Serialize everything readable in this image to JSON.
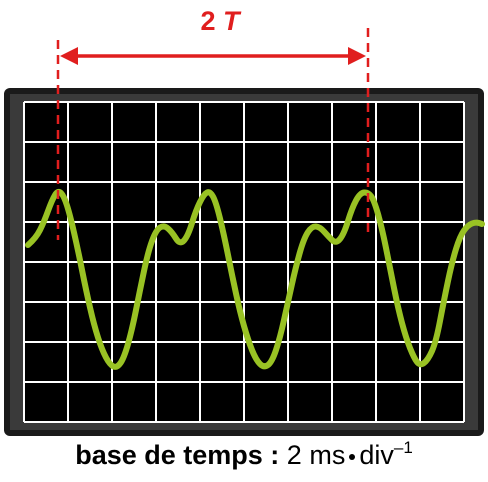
{
  "annotation": {
    "number": "2",
    "symbol": "T"
  },
  "caption": {
    "label": "base de temps :",
    "value": "2",
    "unit_ms": "ms",
    "unit_div": "div",
    "exponent": "–1"
  },
  "screen": {
    "columns": 10,
    "rows": 8
  },
  "colors": {
    "trace": "#99c224",
    "annotation": "#e01e1e",
    "screen": "#000000",
    "grid": "#ffffff",
    "frame": "#111111"
  }
}
